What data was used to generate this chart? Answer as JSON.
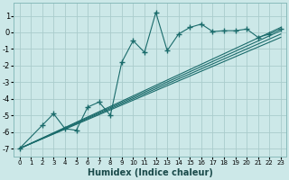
{
  "title": "",
  "xlabel": "Humidex (Indice chaleur)",
  "bg_color": "#cce8e8",
  "grid_color": "#aacccc",
  "line_color": "#1a6b6b",
  "xlim": [
    -0.5,
    23.5
  ],
  "ylim": [
    -7.5,
    1.8
  ],
  "yticks": [
    -7,
    -6,
    -5,
    -4,
    -3,
    -2,
    -1,
    0,
    1
  ],
  "xticks": [
    0,
    1,
    2,
    3,
    4,
    5,
    6,
    7,
    8,
    9,
    10,
    11,
    12,
    13,
    14,
    15,
    16,
    17,
    18,
    19,
    20,
    21,
    22,
    23
  ],
  "series": [
    [
      0,
      -7.0
    ],
    [
      2,
      -5.6
    ],
    [
      3,
      -4.9
    ],
    [
      4,
      -5.8
    ],
    [
      5,
      -5.9
    ],
    [
      6,
      -4.5
    ],
    [
      7,
      -4.2
    ],
    [
      8,
      -5.0
    ],
    [
      9,
      -1.8
    ],
    [
      10,
      -0.5
    ],
    [
      11,
      -1.2
    ],
    [
      12,
      1.2
    ],
    [
      13,
      -1.1
    ],
    [
      14,
      -0.1
    ],
    [
      15,
      0.3
    ],
    [
      16,
      0.5
    ],
    [
      17,
      0.05
    ],
    [
      18,
      0.1
    ],
    [
      19,
      0.1
    ],
    [
      20,
      0.2
    ],
    [
      21,
      -0.3
    ],
    [
      22,
      -0.1
    ],
    [
      23,
      0.2
    ]
  ],
  "linear_lines": [
    {
      "x": [
        0,
        23
      ],
      "y": [
        -7.0,
        0.3
      ]
    },
    {
      "x": [
        0,
        23
      ],
      "y": [
        -7.0,
        0.1
      ]
    },
    {
      "x": [
        0,
        23
      ],
      "y": [
        -7.0,
        -0.1
      ]
    },
    {
      "x": [
        0,
        23
      ],
      "y": [
        -7.0,
        -0.3
      ]
    }
  ]
}
